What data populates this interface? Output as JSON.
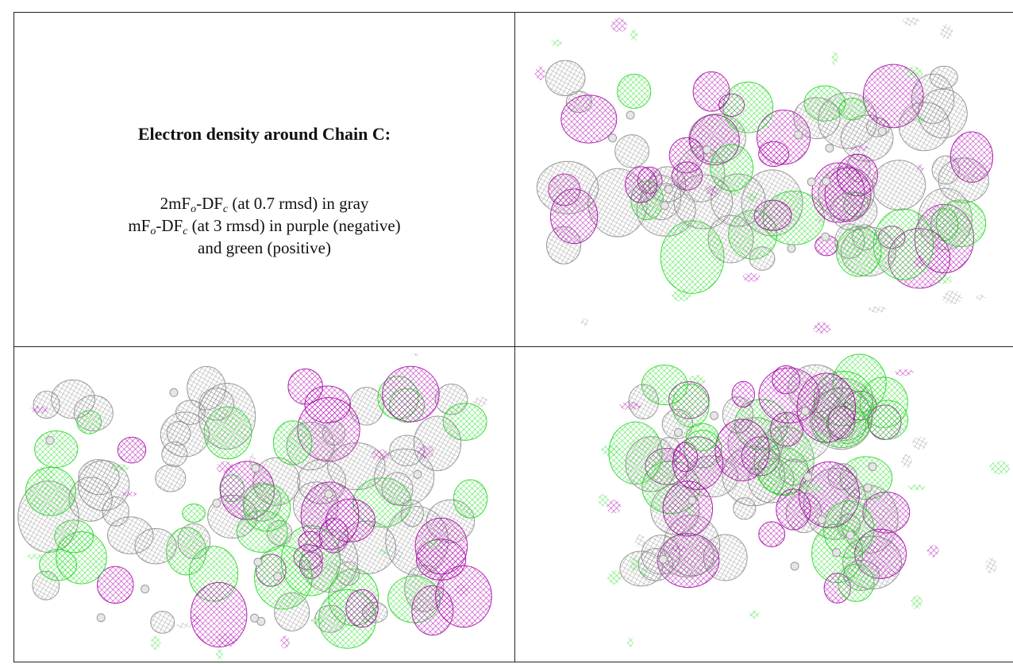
{
  "caption": {
    "title": "Electron density around Chain C:",
    "line1": [
      "2mF",
      "o",
      "-DF",
      "c",
      " (at 0.7 rmsd) in gray"
    ],
    "line2": [
      "mF",
      "o",
      "-DF",
      "c",
      " (at 3 rmsd) in purple (negative)"
    ],
    "line3": "and green (positive)"
  }
}
